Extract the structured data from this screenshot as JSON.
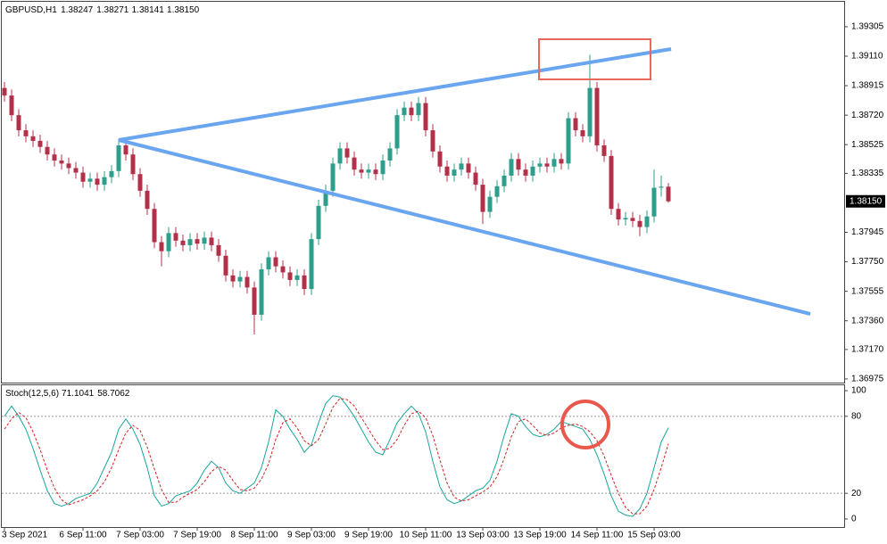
{
  "chart_data": [
    {
      "type": "candlestick",
      "title": "GBPUSD,H1",
      "last_bar_labels": [
        "1.38247",
        "1.38271",
        "1.38141",
        "1.38150"
      ],
      "categories": [
        "3 Sep 2021",
        null,
        null,
        null,
        null,
        null,
        null,
        null,
        null,
        null,
        null,
        "6 Sep 11:00",
        null,
        null,
        null,
        null,
        null,
        null,
        null,
        "7 Sep 03:00",
        null,
        null,
        null,
        null,
        null,
        null,
        null,
        "7 Sep 19:00",
        null,
        null,
        null,
        null,
        null,
        null,
        null,
        "8 Sep 11:00",
        null,
        null,
        null,
        null,
        null,
        null,
        null,
        "9 Sep 03:00",
        null,
        null,
        null,
        null,
        null,
        null,
        null,
        "9 Sep 19:00",
        null,
        null,
        null,
        null,
        null,
        null,
        null,
        "10 Sep 11:00",
        null,
        null,
        null,
        null,
        null,
        null,
        null,
        "13 Sep 03:00",
        null,
        null,
        null,
        null,
        null,
        null,
        null,
        "13 Sep 19:00",
        null,
        null,
        null,
        null,
        null,
        null,
        null,
        "14 Sep 11:00",
        null,
        null,
        null,
        null,
        null,
        null,
        null,
        "15 Sep 03:00",
        null,
        null
      ],
      "open": [
        1.389,
        1.3885,
        1.3872,
        1.3862,
        1.3858,
        1.3855,
        1.3851,
        1.3846,
        1.3842,
        1.384,
        1.3837,
        1.3834,
        1.3828,
        1.383,
        1.3826,
        1.3831,
        1.3835,
        1.3852,
        1.3846,
        1.3833,
        1.3822,
        1.381,
        1.3788,
        1.3782,
        1.3794,
        1.3789,
        1.3786,
        1.379,
        1.3787,
        1.3791,
        1.3786,
        1.3779,
        1.3766,
        1.3762,
        1.3765,
        1.3758,
        1.374,
        1.377,
        1.3778,
        1.3772,
        1.3768,
        1.3763,
        1.3766,
        1.3757,
        1.379,
        1.3812,
        1.3822,
        1.384,
        1.385,
        1.3844,
        1.3836,
        1.3834,
        1.3836,
        1.3833,
        1.3842,
        1.385,
        1.3872,
        1.3877,
        1.3872,
        1.388,
        1.3862,
        1.3848,
        1.3838,
        1.3832,
        1.3836,
        1.384,
        1.3834,
        1.3826,
        1.3808,
        1.3818,
        1.3825,
        1.3832,
        1.3843,
        1.3836,
        1.3832,
        1.3838,
        1.384,
        1.3838,
        1.3843,
        1.384,
        1.387,
        1.3862,
        1.3858,
        1.389,
        1.3852,
        1.3845,
        1.381,
        1.3803,
        1.3804,
        1.3802,
        1.3798,
        1.3805,
        1.3824,
        1.38247
      ],
      "high": [
        1.3894,
        1.3889,
        1.3876,
        1.3866,
        1.3862,
        1.3859,
        1.3855,
        1.385,
        1.3846,
        1.3844,
        1.3841,
        1.3838,
        1.3834,
        1.3834,
        1.3835,
        1.3839,
        1.3856,
        1.3856,
        1.385,
        1.3837,
        1.3826,
        1.3814,
        1.3792,
        1.3798,
        1.3798,
        1.3793,
        1.3794,
        1.3794,
        1.3795,
        1.3795,
        1.379,
        1.3783,
        1.377,
        1.3769,
        1.3769,
        1.3762,
        1.3774,
        1.3782,
        1.3782,
        1.3776,
        1.3772,
        1.377,
        1.377,
        1.3794,
        1.3816,
        1.3826,
        1.3844,
        1.3854,
        1.3854,
        1.3848,
        1.384,
        1.384,
        1.384,
        1.3846,
        1.3854,
        1.3876,
        1.3881,
        1.3881,
        1.3884,
        1.3884,
        1.3866,
        1.3852,
        1.3842,
        1.384,
        1.3844,
        1.3844,
        1.3838,
        1.383,
        1.3822,
        1.3829,
        1.3836,
        1.3847,
        1.3847,
        1.384,
        1.3842,
        1.3844,
        1.3844,
        1.3847,
        1.3847,
        1.3874,
        1.3874,
        1.3866,
        1.3912,
        1.3894,
        1.3856,
        1.3849,
        1.3814,
        1.3808,
        1.3808,
        1.3806,
        1.3809,
        1.3836,
        1.3832,
        1.38271
      ],
      "low": [
        1.3881,
        1.3868,
        1.3858,
        1.3854,
        1.3851,
        1.3847,
        1.3842,
        1.3838,
        1.3836,
        1.3833,
        1.383,
        1.3824,
        1.3824,
        1.3822,
        1.3822,
        1.3827,
        1.3831,
        1.3842,
        1.3829,
        1.3818,
        1.3806,
        1.3784,
        1.3772,
        1.3778,
        1.3785,
        1.3782,
        1.3782,
        1.3783,
        1.3783,
        1.3782,
        1.3775,
        1.3762,
        1.3758,
        1.3758,
        1.3754,
        1.3727,
        1.3736,
        1.3766,
        1.3768,
        1.3764,
        1.3759,
        1.3759,
        1.3753,
        1.3753,
        1.3786,
        1.3808,
        1.3818,
        1.3836,
        1.384,
        1.3832,
        1.383,
        1.383,
        1.3829,
        1.3829,
        1.3838,
        1.3846,
        1.3868,
        1.3868,
        1.3868,
        1.3858,
        1.3844,
        1.3834,
        1.3828,
        1.3828,
        1.3832,
        1.383,
        1.3822,
        1.38,
        1.3804,
        1.3814,
        1.3821,
        1.3828,
        1.3832,
        1.3828,
        1.3828,
        1.3834,
        1.3834,
        1.3834,
        1.3836,
        1.3836,
        1.3858,
        1.3854,
        1.3854,
        1.3848,
        1.3841,
        1.3806,
        1.3799,
        1.3799,
        1.3798,
        1.3792,
        1.3794,
        1.3801,
        1.3818,
        1.38141
      ],
      "close": [
        1.3885,
        1.3872,
        1.3862,
        1.3858,
        1.3855,
        1.3851,
        1.3846,
        1.3842,
        1.384,
        1.3837,
        1.3834,
        1.3828,
        1.383,
        1.3826,
        1.3831,
        1.3835,
        1.3852,
        1.3846,
        1.3833,
        1.3822,
        1.381,
        1.3788,
        1.3782,
        1.3794,
        1.3789,
        1.3786,
        1.379,
        1.3787,
        1.3791,
        1.3786,
        1.3779,
        1.3766,
        1.3762,
        1.3765,
        1.3758,
        1.374,
        1.377,
        1.3778,
        1.3772,
        1.3768,
        1.3763,
        1.3766,
        1.3757,
        1.379,
        1.3812,
        1.3822,
        1.384,
        1.385,
        1.3844,
        1.3836,
        1.3834,
        1.3836,
        1.3833,
        1.3842,
        1.385,
        1.3872,
        1.3877,
        1.3872,
        1.388,
        1.3862,
        1.3848,
        1.3838,
        1.3832,
        1.3836,
        1.384,
        1.3834,
        1.3826,
        1.3808,
        1.3818,
        1.3825,
        1.3832,
        1.3843,
        1.3836,
        1.3832,
        1.3838,
        1.384,
        1.3838,
        1.3843,
        1.384,
        1.387,
        1.3862,
        1.3858,
        1.389,
        1.3852,
        1.3845,
        1.381,
        1.3803,
        1.3804,
        1.3802,
        1.3798,
        1.3805,
        1.3824,
        1.38247,
        1.3815
      ],
      "up_color": "#2e9e8c",
      "down_color": "#b3304a",
      "ylim": [
        1.36957,
        1.39464
      ],
      "yticks": [
        1.39305,
        {
          "value": 1.3911,
          "label": "1.39110"
        },
        1.38915,
        {
          "value": 1.3872,
          "label": "1.38720"
        },
        1.38525,
        1.38335,
        1.37945,
        {
          "value": 1.3775,
          "label": "1.37750"
        },
        1.37555,
        {
          "value": 1.3736,
          "label": "1.37360"
        },
        {
          "value": 1.3717,
          "label": "1.37170"
        },
        1.36975
      ]
    },
    {
      "type": "line",
      "title": "Stoch(12,5,6)",
      "series": [
        {
          "color": "#1aa59c",
          "dashed": false,
          "values": [
            80,
            88,
            80,
            70,
            55,
            38,
            22,
            12,
            10,
            12,
            16,
            18,
            20,
            28,
            40,
            52,
            70,
            78,
            70,
            58,
            40,
            18,
            10,
            12,
            18,
            20,
            22,
            28,
            38,
            45,
            40,
            28,
            22,
            20,
            24,
            28,
            40,
            60,
            85,
            80,
            70,
            62,
            52,
            58,
            75,
            90,
            96,
            95,
            88,
            80,
            70,
            60,
            52,
            50,
            62,
            75,
            82,
            88,
            82,
            68,
            45,
            25,
            15,
            12,
            14,
            18,
            22,
            24,
            30,
            45,
            65,
            82,
            80,
            72,
            66,
            64,
            66,
            70,
            76,
            74,
            72,
            70,
            62,
            50,
            35,
            18,
            6,
            3,
            2,
            8,
            20,
            40,
            60,
            71.1041
          ]
        },
        {
          "color": "#d42020",
          "dashed": true,
          "values": [
            70,
            78,
            83,
            79,
            68,
            54,
            38,
            24,
            15,
            11,
            13,
            15,
            18,
            22,
            29,
            40,
            54,
            67,
            73,
            69,
            56,
            39,
            23,
            13,
            13,
            17,
            20,
            23,
            29,
            37,
            41,
            38,
            30,
            23,
            22,
            24,
            31,
            43,
            62,
            75,
            78,
            71,
            61,
            57,
            62,
            74,
            87,
            94,
            93,
            88,
            79,
            70,
            61,
            54,
            55,
            62,
            73,
            82,
            84,
            79,
            65,
            46,
            28,
            17,
            14,
            15,
            18,
            21,
            25,
            33,
            47,
            64,
            76,
            78,
            73,
            67,
            65,
            67,
            71,
            73,
            74,
            72,
            68,
            61,
            49,
            34,
            20,
            9,
            4,
            4,
            10,
            23,
            40,
            58.7062
          ]
        }
      ],
      "ylim": [
        -5.6,
        104.2
      ],
      "yticks": [
        0,
        20,
        80,
        100
      ],
      "levels": [
        20,
        80
      ]
    }
  ]
}
